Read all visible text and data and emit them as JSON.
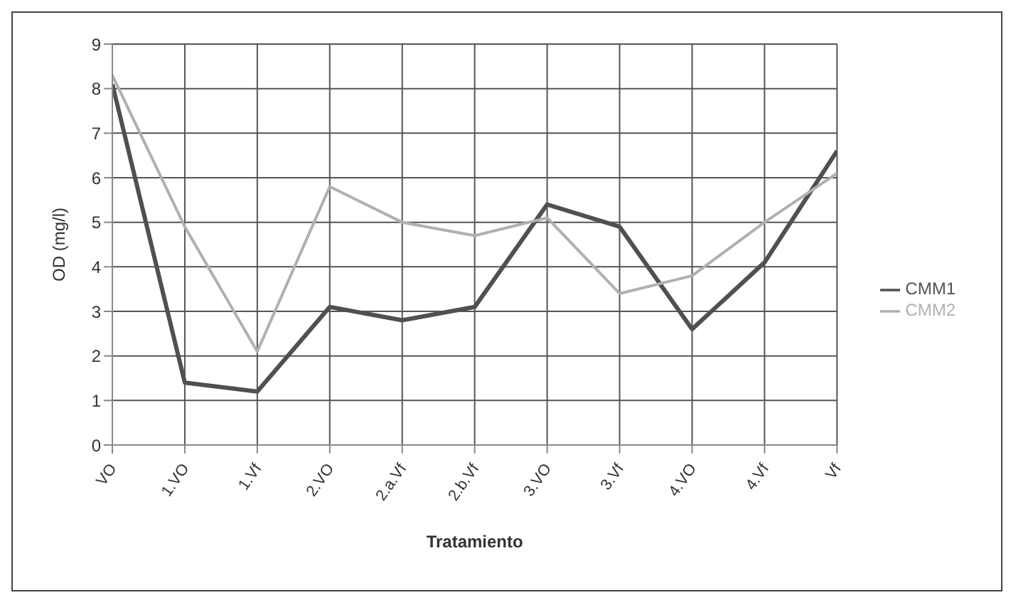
{
  "chart_data": {
    "type": "line",
    "xlabel": "Tratamiento",
    "ylabel": "OD (mg/l)",
    "categories": [
      "VO",
      "1.VO",
      "1.Vf",
      "2.VO",
      "2.a.Vf",
      "2.b.Vf",
      "3.VO",
      "3.Vf",
      "4.VO",
      "4.Vf",
      "Vf"
    ],
    "series": [
      {
        "name": "CMM1",
        "color": "#505050",
        "values": [
          8.1,
          1.4,
          1.2,
          3.1,
          2.8,
          3.1,
          5.4,
          4.9,
          2.6,
          4.1,
          6.6
        ]
      },
      {
        "name": "CMM2",
        "color": "#b0b0b0",
        "values": [
          8.3,
          4.9,
          2.1,
          5.8,
          5.0,
          4.7,
          5.1,
          3.4,
          3.8,
          5.0,
          6.1
        ]
      }
    ],
    "ylim": [
      0,
      9
    ],
    "yticks": [
      0,
      1,
      2,
      3,
      4,
      5,
      6,
      7,
      8,
      9
    ],
    "grid": true,
    "legend": "right",
    "marker": "none",
    "line_style": "solid"
  }
}
